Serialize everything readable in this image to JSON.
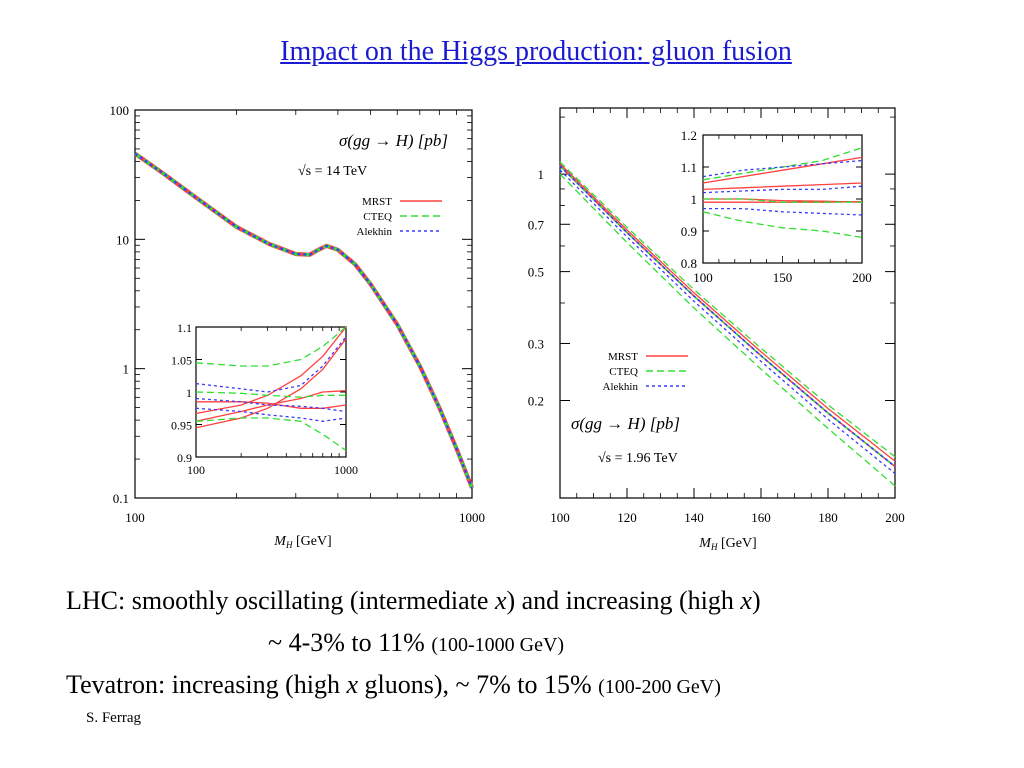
{
  "slide": {
    "title": "Impact on the Higgs production: gluon fusion ",
    "lines": [
      {
        "lead": "LHC: smoothly oscillating (intermediate ",
        "x1": "x",
        "mid": ") and increasing (high ",
        "x2": "x",
        "tail": ")"
      },
      {
        "main": "~ 4-3%  to  11% ",
        "small": "(100-1000 GeV)"
      },
      {
        "lead": "Tevatron: increasing (high ",
        "x1": "x",
        "mid": " gluons),  ~ 7% to 15%  ",
        "small": "(100-200 GeV)"
      }
    ],
    "author": "S. Ferrag"
  },
  "colors": {
    "title": "#1a1ad0",
    "mrst": "#ff4040",
    "cteq": "#33dd33",
    "alekhin": "#3a3aff"
  },
  "chart_data": [
    {
      "type": "line",
      "label_top": "σ(gg → H) [pb]",
      "label_sqrts": "√s = 14 TeV",
      "xlabel": "M_H [GeV]",
      "xlabel_main": "M",
      "xlabel_sub": "H",
      "xlabel_unit": " [GeV]",
      "xscale": "log",
      "yscale": "log",
      "xlim": [
        100,
        1000
      ],
      "ylim": [
        0.1,
        100
      ],
      "xticks": [
        100,
        1000
      ],
      "xtick_labels": [
        "100",
        "1000"
      ],
      "yticks": [
        0.1,
        1,
        10,
        100
      ],
      "ytick_labels": [
        "0.1",
        "1",
        "10",
        "100"
      ],
      "legend_position": "top-right",
      "series": [
        {
          "name": "MRST",
          "style": "solid",
          "x": [
            100,
            120,
            150,
            200,
            250,
            300,
            330,
            350,
            370,
            400,
            450,
            500,
            600,
            700,
            800,
            900,
            1000
          ],
          "y": [
            46,
            33,
            21.5,
            12.5,
            9.2,
            7.7,
            7.6,
            8.3,
            8.9,
            8.3,
            6.4,
            4.5,
            2.2,
            1.05,
            0.5,
            0.24,
            0.12
          ]
        },
        {
          "name": "CTEQ",
          "style": "dashed",
          "x": [
            100,
            120,
            150,
            200,
            250,
            300,
            330,
            350,
            370,
            400,
            450,
            500,
            600,
            700,
            800,
            900,
            1000
          ],
          "y": [
            46,
            33,
            21.5,
            12.5,
            9.2,
            7.7,
            7.6,
            8.3,
            8.9,
            8.3,
            6.4,
            4.5,
            2.2,
            1.05,
            0.5,
            0.24,
            0.12
          ]
        },
        {
          "name": "Alekhin",
          "style": "dotted",
          "x": [
            100,
            120,
            150,
            200,
            250,
            300,
            330,
            350,
            370,
            400,
            450,
            500,
            600,
            700,
            800,
            900,
            1000
          ],
          "y": [
            46,
            33,
            21.5,
            12.5,
            9.2,
            7.7,
            7.6,
            8.3,
            8.9,
            8.3,
            6.4,
            4.5,
            2.2,
            1.05,
            0.5,
            0.24,
            0.12
          ]
        }
      ],
      "inset": {
        "type": "line",
        "xscale": "log",
        "xlim": [
          100,
          1000
        ],
        "ylim": [
          0.9,
          1.1
        ],
        "xticks": [
          100,
          1000
        ],
        "xtick_labels": [
          "100",
          "1000"
        ],
        "yticks": [
          0.9,
          0.95,
          1.0,
          1.05,
          1.1
        ],
        "ytick_labels": [
          "0.9",
          "0.95",
          "1",
          "1.05",
          "1.1"
        ],
        "curves": [
          {
            "series": "MRST",
            "style": "solid",
            "x": [
              100,
              200,
              300,
              500,
              700,
              1000
            ],
            "y": [
              0.967,
              0.98,
              0.995,
              1.025,
              1.055,
              1.1
            ]
          },
          {
            "series": "MRST",
            "style": "solid",
            "x": [
              100,
              200,
              300,
              500,
              700,
              1000
            ],
            "y": [
              0.945,
              0.96,
              0.975,
              1.005,
              1.035,
              1.082
            ]
          },
          {
            "series": "MRST",
            "style": "solid",
            "x": [
              100,
              200,
              300,
              500,
              700,
              1000
            ],
            "y": [
              0.985,
              0.985,
              0.983,
              0.975,
              0.975,
              0.98
            ]
          },
          {
            "series": "MRST",
            "style": "solid",
            "x": [
              100,
              200,
              300,
              500,
              700,
              1000
            ],
            "y": [
              0.955,
              0.97,
              0.98,
              0.99,
              1.0,
              1.002
            ]
          },
          {
            "series": "CTEQ",
            "style": "dashed",
            "x": [
              100,
              200,
              300,
              500,
              700,
              1000
            ],
            "y": [
              1.045,
              1.04,
              1.04,
              1.05,
              1.07,
              1.1
            ]
          },
          {
            "series": "CTEQ",
            "style": "dashed",
            "x": [
              100,
              200,
              300,
              500,
              700,
              1000
            ],
            "y": [
              1.0,
              0.998,
              0.995,
              0.992,
              0.995,
              0.995
            ]
          },
          {
            "series": "CTEQ",
            "style": "dashed",
            "x": [
              100,
              200,
              300,
              500,
              700,
              1000
            ],
            "y": [
              0.955,
              0.96,
              0.96,
              0.955,
              0.935,
              0.91
            ]
          },
          {
            "series": "Alekhin",
            "style": "dotted",
            "x": [
              100,
              200,
              300,
              500,
              700,
              1000
            ],
            "y": [
              1.013,
              1.005,
              1.0,
              1.01,
              1.04,
              1.085
            ]
          },
          {
            "series": "Alekhin",
            "style": "dotted",
            "x": [
              100,
              200,
              300,
              500,
              700,
              1000
            ],
            "y": [
              0.99,
              0.985,
              0.98,
              0.978,
              0.975,
              0.97
            ]
          },
          {
            "series": "Alekhin",
            "style": "dotted",
            "x": [
              100,
              200,
              300,
              500,
              700,
              1000
            ],
            "y": [
              0.975,
              0.97,
              0.965,
              0.96,
              0.955,
              0.96
            ]
          }
        ]
      }
    },
    {
      "type": "line",
      "label_top": "σ(gg → H) [pb]",
      "label_sqrts": "√s = 1.96 TeV",
      "xlabel": "M_H [GeV]",
      "xlabel_main": "M",
      "xlabel_sub": "H",
      "xlabel_unit": " [GeV]",
      "xscale": "linear",
      "yscale": "log",
      "xlim": [
        100,
        200
      ],
      "ylim": [
        0.1,
        1.6
      ],
      "xticks": [
        100,
        120,
        140,
        160,
        180,
        200
      ],
      "xtick_labels": [
        "100",
        "120",
        "140",
        "160",
        "180",
        "200"
      ],
      "yticks": [
        0.2,
        0.3,
        0.5,
        0.7,
        1
      ],
      "ytick_labels": [
        "0.2",
        "0.3",
        "0.5",
        "0.7",
        "1"
      ],
      "legend_position": "center-left",
      "series": [
        {
          "name": "MRST",
          "style": "solid",
          "x": [
            100,
            120,
            140,
            160,
            180,
            200
          ],
          "y": [
            1.06,
            0.66,
            0.42,
            0.275,
            0.183,
            0.125
          ]
        },
        {
          "name": "CTEQ",
          "style": "dashed",
          "x": [
            100,
            120,
            140,
            160,
            180,
            200
          ],
          "y": [
            1.06,
            0.66,
            0.42,
            0.275,
            0.183,
            0.125
          ]
        },
        {
          "name": "Alekhin",
          "style": "dotted",
          "x": [
            100,
            120,
            140,
            160,
            180,
            200
          ],
          "y": [
            1.06,
            0.66,
            0.42,
            0.275,
            0.183,
            0.125
          ]
        }
      ],
      "bands": [
        {
          "series": "CTEQ",
          "style": "dashed",
          "x": [
            100,
            120,
            140,
            160,
            180,
            200
          ],
          "y": [
            1.09,
            0.685,
            0.44,
            0.29,
            0.194,
            0.134
          ]
        },
        {
          "series": "CTEQ",
          "style": "dashed",
          "x": [
            100,
            120,
            140,
            160,
            180,
            200
          ],
          "y": [
            1.0,
            0.615,
            0.386,
            0.25,
            0.164,
            0.109
          ]
        },
        {
          "series": "MRST",
          "style": "solid",
          "x": [
            100,
            120,
            140,
            160,
            180,
            200
          ],
          "y": [
            1.075,
            0.672,
            0.43,
            0.283,
            0.189,
            0.13
          ]
        },
        {
          "series": "Alekhin",
          "style": "dotted",
          "x": [
            100,
            120,
            140,
            160,
            180,
            200
          ],
          "y": [
            1.03,
            0.64,
            0.405,
            0.264,
            0.175,
            0.119
          ]
        }
      ],
      "inset": {
        "type": "line",
        "xscale": "linear",
        "xlim": [
          100,
          200
        ],
        "ylim": [
          0.8,
          1.2
        ],
        "xticks": [
          100,
          150,
          200
        ],
        "xtick_labels": [
          "100",
          "150",
          "200"
        ],
        "yticks": [
          0.8,
          0.9,
          1.0,
          1.1,
          1.2
        ],
        "ytick_labels": [
          "0.8",
          "0.9",
          "1",
          "1.1",
          "1.2"
        ],
        "curves": [
          {
            "series": "MRST",
            "style": "solid",
            "x": [
              100,
              125,
              150,
              175,
              200
            ],
            "y": [
              1.05,
              1.07,
              1.09,
              1.11,
              1.13
            ]
          },
          {
            "series": "MRST",
            "style": "solid",
            "x": [
              100,
              125,
              150,
              175,
              200
            ],
            "y": [
              1.03,
              1.035,
              1.04,
              1.045,
              1.05
            ]
          },
          {
            "series": "MRST",
            "style": "solid",
            "x": [
              100,
              125,
              150,
              175,
              200
            ],
            "y": [
              1.0,
              1.0,
              0.995,
              0.993,
              0.99
            ]
          },
          {
            "series": "MRST",
            "style": "solid",
            "x": [
              100,
              125,
              150,
              175,
              200
            ],
            "y": [
              0.99,
              0.99,
              0.99,
              0.99,
              0.992
            ]
          },
          {
            "series": "CTEQ",
            "style": "dashed",
            "x": [
              100,
              125,
              150,
              175,
              200
            ],
            "y": [
              1.06,
              1.08,
              1.1,
              1.12,
              1.16
            ]
          },
          {
            "series": "CTEQ",
            "style": "dashed",
            "x": [
              100,
              125,
              150,
              175,
              200
            ],
            "y": [
              1.0,
              1.0,
              0.99,
              0.99,
              0.99
            ]
          },
          {
            "series": "CTEQ",
            "style": "dashed",
            "x": [
              100,
              125,
              150,
              175,
              200
            ],
            "y": [
              0.96,
              0.93,
              0.91,
              0.9,
              0.88
            ]
          },
          {
            "series": "Alekhin",
            "style": "dotted",
            "x": [
              100,
              125,
              150,
              175,
              200
            ],
            "y": [
              1.07,
              1.09,
              1.1,
              1.11,
              1.12
            ]
          },
          {
            "series": "Alekhin",
            "style": "dotted",
            "x": [
              100,
              125,
              150,
              175,
              200
            ],
            "y": [
              1.02,
              1.025,
              1.03,
              1.03,
              1.04
            ]
          },
          {
            "series": "Alekhin",
            "style": "dotted",
            "x": [
              100,
              125,
              150,
              175,
              200
            ],
            "y": [
              0.97,
              0.97,
              0.96,
              0.955,
              0.95
            ]
          }
        ]
      }
    }
  ]
}
